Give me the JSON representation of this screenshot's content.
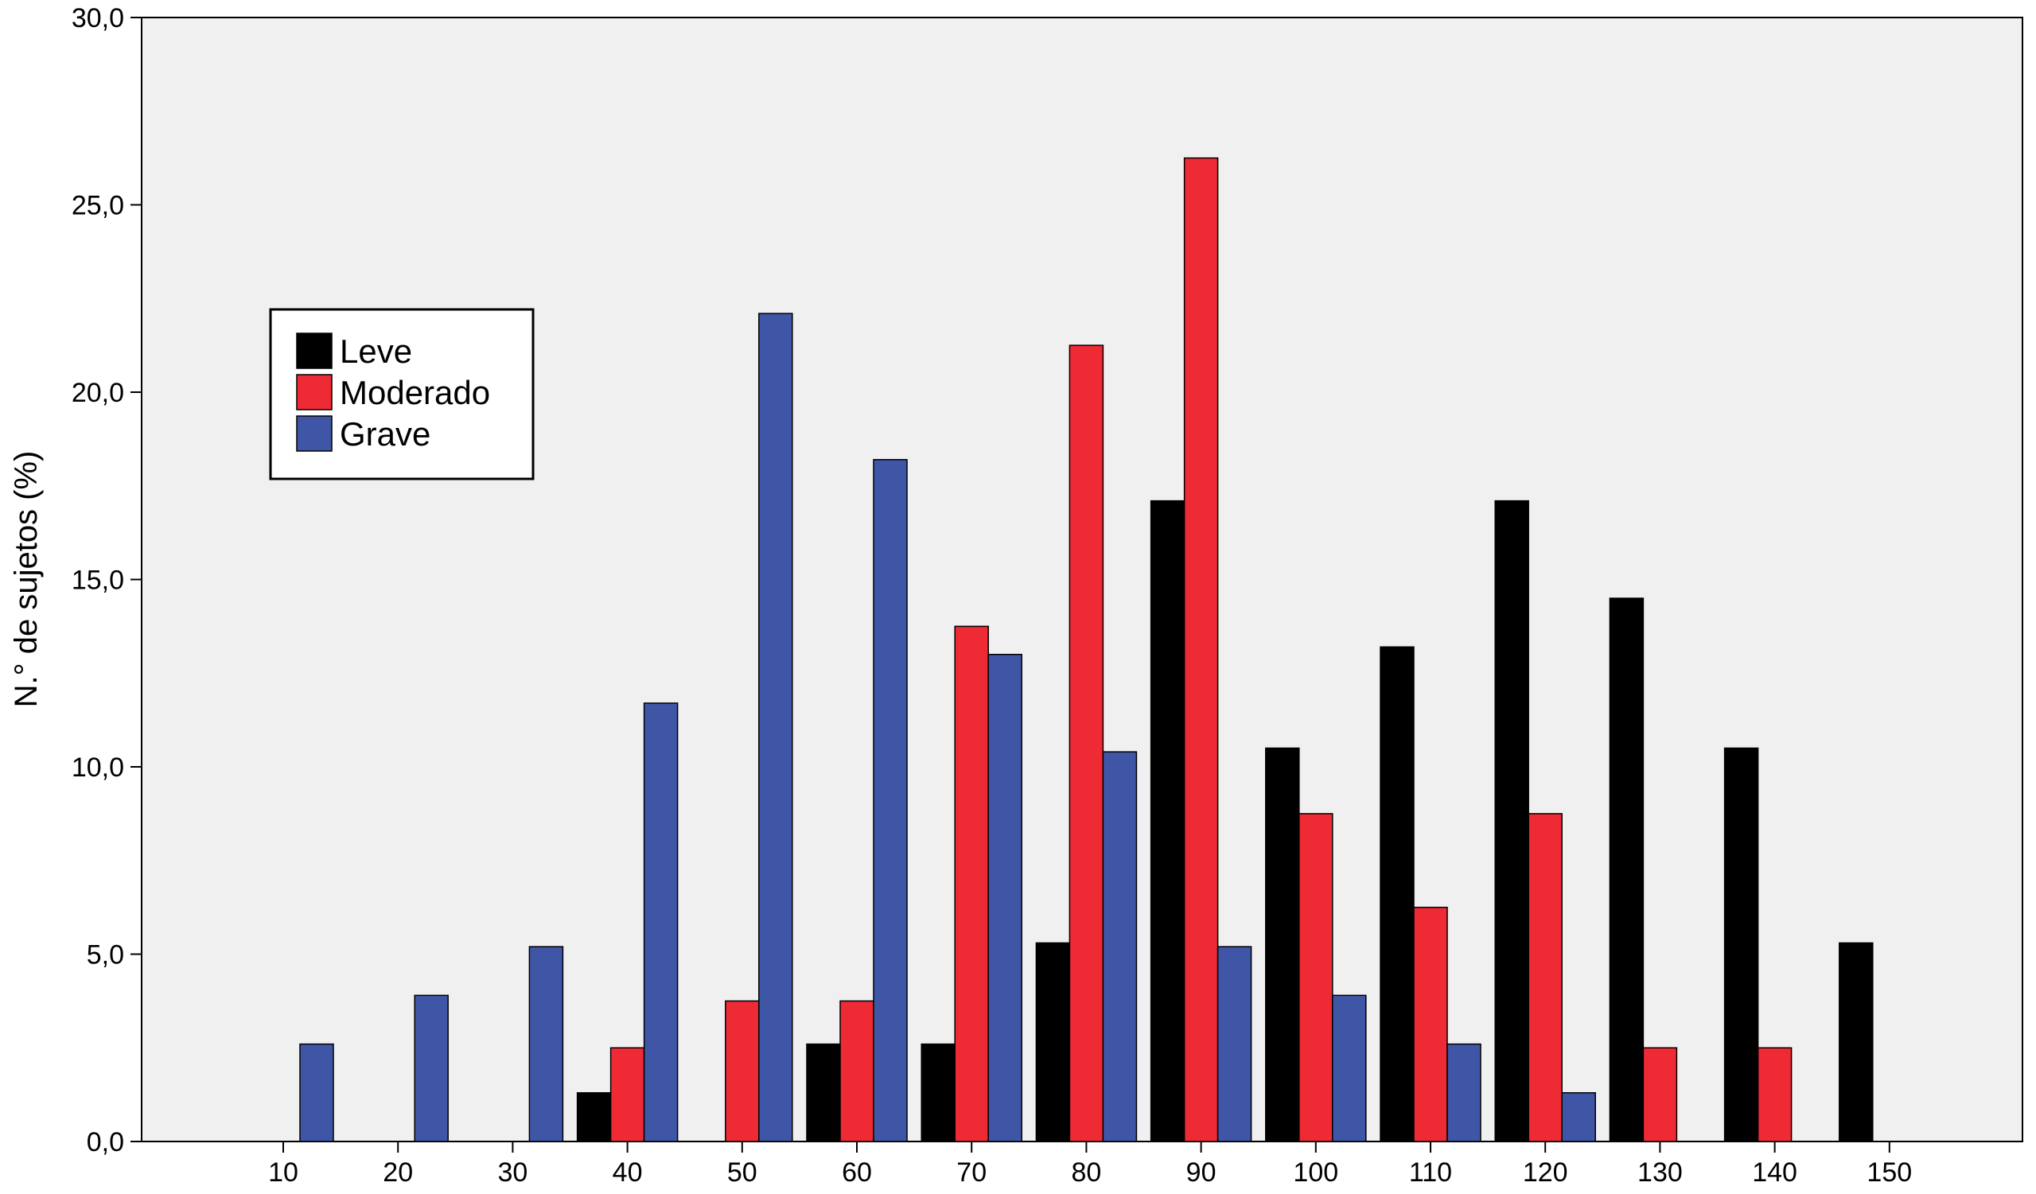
{
  "chart_data": {
    "type": "bar",
    "title": "",
    "xlabel": "",
    "ylabel": "N.° de sujetos (%)",
    "categories": [
      "10",
      "20",
      "30",
      "40",
      "50",
      "60",
      "70",
      "80",
      "90",
      "100",
      "110",
      "120",
      "130",
      "140",
      "150"
    ],
    "series": [
      {
        "name": "Leve",
        "color": "#000000",
        "values": [
          0,
          0,
          0,
          1.3,
          0,
          2.6,
          2.6,
          5.3,
          17.1,
          10.5,
          13.2,
          17.1,
          14.5,
          10.5,
          5.3
        ]
      },
      {
        "name": "Moderado",
        "color": "#ee2a35",
        "values": [
          0,
          0,
          0,
          2.5,
          3.75,
          3.75,
          13.75,
          21.25,
          26.25,
          8.75,
          6.25,
          8.75,
          2.5,
          2.5,
          0
        ]
      },
      {
        "name": "Grave",
        "color": "#3f56a6",
        "values": [
          2.6,
          3.9,
          5.2,
          11.7,
          22.1,
          18.2,
          13.0,
          10.4,
          5.2,
          3.9,
          2.6,
          1.3,
          0,
          0,
          0
        ]
      }
    ],
    "yticks": [
      "0,0",
      "5,0",
      "10,0",
      "15,0",
      "20,0",
      "25,0",
      "30,0"
    ],
    "ylim": [
      0,
      30
    ],
    "grid": false,
    "legend_position": "upper-left",
    "plot_background": "#f0f0f0"
  }
}
